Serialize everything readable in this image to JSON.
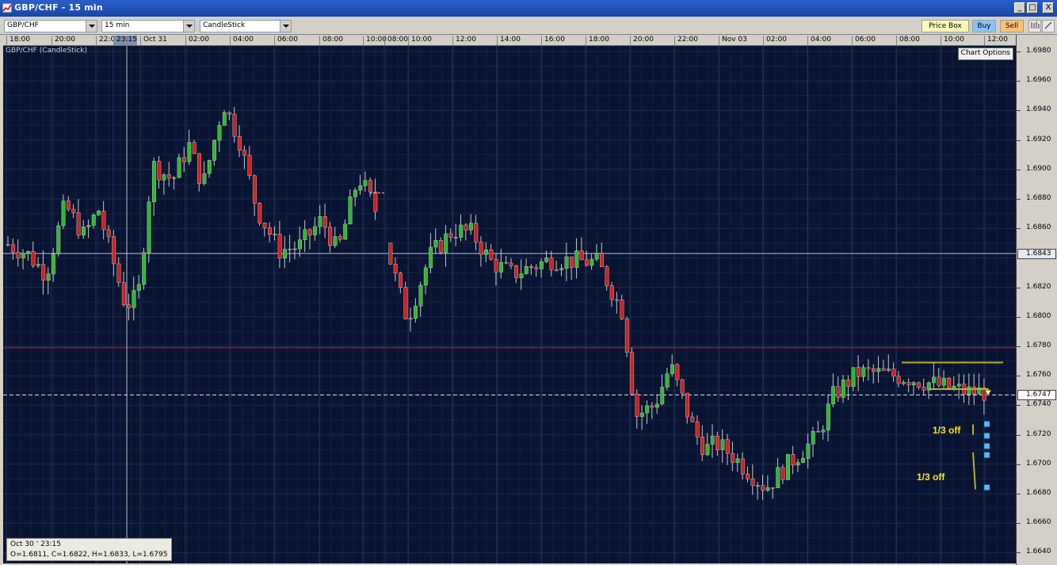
{
  "window": {
    "title": "GBP/CHF - 15 min",
    "buttons": [
      "_",
      "□",
      "X"
    ]
  },
  "toolbar": {
    "symbol": "GBP/CHF",
    "interval": "15 min",
    "chart_style": "CandleStick",
    "price_box_label": "Price Box",
    "buy_label": "Buy",
    "sell_label": "Sell"
  },
  "chart": {
    "title": "GBP/CHF (CandleStick)",
    "chart_options_label": "Chart Options",
    "time_labels": [
      "18:00",
      "20:00",
      "22:0",
      "23:15",
      "Oct 31",
      "02:00",
      "04:00",
      "06:00",
      "08:00",
      "10:00",
      "08:00",
      "10:00",
      "12:00",
      "14:00",
      "16:00",
      "18:00",
      "20:00",
      "22:00",
      "Nov 03",
      "02:00",
      "04:00",
      "06:00",
      "08:00",
      "10:00",
      "12:00"
    ],
    "price_labels": [
      "1.6980",
      "1.6960",
      "1.6940",
      "1.6920",
      "1.6900",
      "1.6880",
      "1.6860",
      "1.6843",
      "1.6820",
      "1.6800",
      "1.6780",
      "1.6760",
      "1.6747",
      "1.6740",
      "1.6720",
      "1.6700",
      "1.6680",
      "1.6660",
      "1.6640"
    ],
    "crosshair_price": "1.6843",
    "current_price": "1.6747",
    "crosshair_time": "23:15",
    "annotations": [
      "1/3 off",
      "1/3 off"
    ],
    "ohlc_date": "Oct 30 ' 23:15",
    "ohlc_values": "O=1.6811, C=1.6822, H=1.6833, L=1.6795",
    "colors": {
      "background": "#081431",
      "bull": "#2fb82f",
      "bear": "#d11f1f",
      "resistance": "#c41a1a",
      "annotation": "#ffe21a",
      "marker": "#58b6ff"
    }
  },
  "chart_data": {
    "type": "candlestick",
    "title": "GBP/CHF (CandleStick)",
    "ylim": [
      1.6635,
      1.699
    ],
    "x": [
      "18:00",
      "20:00",
      "22:00",
      "Oct 31",
      "02:00",
      "04:00",
      "06:00",
      "08:00",
      "10:00",
      "08:00",
      "10:00",
      "12:00",
      "14:00",
      "16:00",
      "18:00",
      "20:00",
      "22:00",
      "Nov 03",
      "02:00",
      "04:00",
      "06:00",
      "08:00",
      "10:00",
      "12:00"
    ],
    "horizontal_lines": [
      {
        "price": 1.6843,
        "style": "solid",
        "color": "#c0c8d8"
      },
      {
        "price": 1.6779,
        "style": "solid",
        "color": "#c41a1a"
      },
      {
        "price": 1.6747,
        "style": "dashed",
        "color": "#ffffff"
      }
    ],
    "channel_lines": [
      {
        "from": "08:00",
        "to": "12:00",
        "price": 1.6769
      },
      {
        "from": "08:00",
        "to": "12:00",
        "price": 1.6751
      }
    ],
    "waypoints": [
      {
        "t": "18:00",
        "p": 1.6849
      },
      {
        "t": "19:00",
        "p": 1.6843
      },
      {
        "t": "20:00",
        "p": 1.6829
      },
      {
        "t": "20:45",
        "p": 1.6876
      },
      {
        "t": "22:00",
        "p": 1.6855
      },
      {
        "t": "22:30",
        "p": 1.6873
      },
      {
        "t": "23:15",
        "p": 1.6808
      },
      {
        "t": "23:45",
        "p": 1.6813
      },
      {
        "t": "00:30",
        "p": 1.6903
      },
      {
        "t": "01:30",
        "p": 1.6893
      },
      {
        "t": "02:00",
        "p": 1.6917
      },
      {
        "t": "02:45",
        "p": 1.6889
      },
      {
        "t": "03:30",
        "p": 1.6945
      },
      {
        "t": "04:15",
        "p": 1.692
      },
      {
        "t": "05:00",
        "p": 1.6873
      },
      {
        "t": "06:00",
        "p": 1.6845
      },
      {
        "t": "07:00",
        "p": 1.6848
      },
      {
        "t": "08:00",
        "p": 1.6866
      },
      {
        "t": "09:00",
        "p": 1.6844
      },
      {
        "t": "10:00",
        "p": 1.6895
      },
      {
        "t": "10:30",
        "p": 1.6884
      },
      {
        "t": "08:00b",
        "p": 1.686
      },
      {
        "t": "09:00b",
        "p": 1.6843
      },
      {
        "t": "10:30b",
        "p": 1.6798
      },
      {
        "t": "11:30b",
        "p": 1.6841
      },
      {
        "t": "12:30b",
        "p": 1.6859
      },
      {
        "t": "13:15b",
        "p": 1.6857
      },
      {
        "t": "14:00b",
        "p": 1.6838
      },
      {
        "t": "16:00b",
        "p": 1.6829
      },
      {
        "t": "17:30b",
        "p": 1.6839
      },
      {
        "t": "19:30b",
        "p": 1.6837
      },
      {
        "t": "20:30b",
        "p": 1.6803
      },
      {
        "t": "21:00b",
        "p": 1.6733
      },
      {
        "t": "22:00b",
        "p": 1.674
      },
      {
        "t": "23:00b",
        "p": 1.6767
      },
      {
        "t": "00:30c",
        "p": 1.6722
      },
      {
        "t": "01:15c",
        "p": 1.671
      },
      {
        "t": "02:00c",
        "p": 1.6714
      },
      {
        "t": "03:30c",
        "p": 1.6707
      },
      {
        "t": "04:30c",
        "p": 1.6684
      },
      {
        "t": "05:30c",
        "p": 1.6704
      },
      {
        "t": "06:30c",
        "p": 1.6719
      },
      {
        "t": "07:30c",
        "p": 1.6747
      },
      {
        "t": "08:30c",
        "p": 1.6762
      },
      {
        "t": "10:30c",
        "p": 1.6762
      },
      {
        "t": "11:30c",
        "p": 1.6759
      },
      {
        "t": "12:00c",
        "p": 1.6749
      }
    ],
    "markers": [
      {
        "label": "1/3 off",
        "price": 1.6722
      },
      {
        "label": "1/3 off",
        "price": 1.67
      }
    ]
  }
}
